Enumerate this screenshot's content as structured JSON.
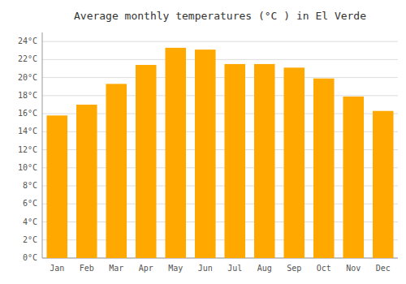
{
  "chart_data": {
    "type": "bar",
    "title": "Average monthly temperatures (°C ) in El Verde",
    "categories": [
      "Jan",
      "Feb",
      "Mar",
      "Apr",
      "May",
      "Jun",
      "Jul",
      "Aug",
      "Sep",
      "Oct",
      "Nov",
      "Dec"
    ],
    "values": [
      15.8,
      17.0,
      19.3,
      21.4,
      23.3,
      23.1,
      21.5,
      21.5,
      21.1,
      19.9,
      17.9,
      16.3
    ],
    "color": "#FFA800",
    "ylim": [
      0,
      25
    ],
    "yticks": [
      {
        "value": 0,
        "label": "0°C"
      },
      {
        "value": 2,
        "label": "2°C"
      },
      {
        "value": 4,
        "label": "4°C"
      },
      {
        "value": 6,
        "label": "6°C"
      },
      {
        "value": 8,
        "label": "8°C"
      },
      {
        "value": 10,
        "label": "10°C"
      },
      {
        "value": 12,
        "label": "12°C"
      },
      {
        "value": 14,
        "label": "14°C"
      },
      {
        "value": 16,
        "label": "16°C"
      },
      {
        "value": 18,
        "label": "18°C"
      },
      {
        "value": 20,
        "label": "20°C"
      },
      {
        "value": 22,
        "label": "22°C"
      },
      {
        "value": 24,
        "label": "24°C"
      }
    ],
    "grid": true
  }
}
